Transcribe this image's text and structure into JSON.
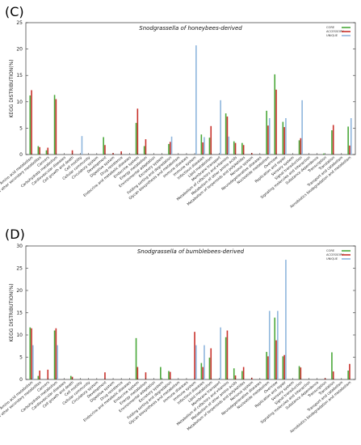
{
  "colors": {
    "core": "#4aa83a",
    "accessory": "#c8312b",
    "unique": "#8fb6dd"
  },
  "chart_data": [
    {
      "panel_label": "(C)",
      "type": "bar",
      "title": "Snodgrassella of honeybees-derived",
      "ylabel": "KEGG   DISTRIBUTION(%)",
      "ylim": [
        0,
        25
      ],
      "yticks": [
        0,
        5,
        10,
        15,
        20,
        25
      ],
      "legend": {
        "placement": "top-right",
        "entries": [
          "CORE",
          "ACCESSORY",
          "UNIQUE"
        ]
      },
      "categories": [
        "Amino acid metabolism",
        "Biosynthesis of other secondary metabolites",
        "Cancers",
        "Carbohydrate metabolism",
        "Cardiovascular diseases",
        "Cell growth and death",
        "Cell motility",
        "Cellular community",
        "Circulatory system",
        "Development",
        "Digestive system",
        "Drug resistance",
        "Endocrine and metabolic diseases",
        "Endocrine system",
        "Energy metabolism",
        "Environmental adaptation",
        "Excretory system",
        "Folding sorting and degradation",
        "Glycan biosynthesis and metabolism",
        "Immune diseases",
        "Immune system",
        "Infectious diseases",
        "Lipid metabolism",
        "Membrane transport",
        "Metabolism of cofactors and vitamins",
        "Metabolism of other amino acids",
        "Metabolism of terpenoids and polyketides",
        "Nervous system",
        "Neurodegenerative diseases",
        "Nucleotide metabolism",
        "Overview",
        "Replication and repair",
        "Sensory system",
        "Signal transduction",
        "Signaling molecules and interaction",
        "Substance dependence",
        "Transcription",
        "Translation",
        "Transport and catabolism",
        "Xenobiotics biodegradation and metabolism"
      ],
      "series": [
        {
          "name": "CORE",
          "values": [
            11.2,
            1.6,
            0.8,
            11.3,
            0.0,
            0.0,
            0.0,
            0.0,
            0.0,
            3.3,
            0.0,
            0.0,
            0.0,
            6.0,
            1.6,
            0.0,
            0.0,
            2.0,
            0.0,
            0.0,
            0.0,
            3.8,
            3.2,
            0.0,
            7.8,
            2.5,
            2.2,
            0.0,
            0.0,
            8.3,
            15.2,
            6.2,
            0.0,
            2.7,
            0.0,
            0.0,
            0.2,
            4.6,
            0.0,
            5.3
          ]
        },
        {
          "name": "ACCESSORY",
          "values": [
            12.2,
            1.4,
            1.3,
            10.5,
            0.0,
            0.8,
            0.0,
            0.0,
            0.0,
            1.8,
            0.3,
            0.6,
            0.0,
            8.7,
            2.9,
            0.0,
            0.0,
            2.4,
            0.0,
            0.0,
            0.0,
            2.3,
            5.4,
            0.0,
            7.2,
            2.2,
            1.8,
            0.3,
            0.0,
            5.5,
            12.3,
            5.2,
            0.0,
            3.1,
            0.0,
            0.0,
            0.0,
            5.6,
            0.0,
            1.7
          ]
        },
        {
          "name": "UNIQUE",
          "values": [
            0.0,
            0.0,
            0.0,
            0.0,
            0.0,
            0.0,
            3.5,
            0.0,
            0.0,
            0.0,
            0.0,
            0.0,
            0.0,
            0.0,
            0.0,
            0.0,
            0.0,
            3.4,
            0.0,
            0.0,
            20.7,
            3.3,
            0.0,
            10.3,
            3.4,
            0.0,
            0.0,
            0.0,
            0.0,
            6.9,
            0.0,
            6.9,
            0.0,
            10.3,
            0.0,
            0.0,
            0.0,
            0.0,
            0.0,
            6.9
          ]
        }
      ]
    },
    {
      "panel_label": "(D)",
      "type": "bar",
      "title": "Snodgrassella of bumblebees-derived",
      "ylabel": "KEGG   DISTRIBUTION(%)",
      "ylim": [
        0,
        30
      ],
      "yticks": [
        0,
        5,
        10,
        15,
        20,
        25,
        30
      ],
      "legend": {
        "placement": "top-right",
        "entries": [
          "CORE",
          "ACCESSORY",
          "UNIQUE"
        ]
      },
      "categories": [
        "Amino acid metabolism",
        "Biosynthesis of other secondary metabolites",
        "Cancers",
        "Carbohydrate metabolism",
        "Cardiovascular diseases",
        "Cell growth and death",
        "Cell motility",
        "Cellular community",
        "Circulatory system",
        "Development",
        "Digestive system",
        "Drug resistance",
        "Endocrine and metabolic diseases",
        "Endocrine system",
        "Energy metabolism",
        "Environmental adaptation",
        "Excretory system",
        "Folding sorting and degradation",
        "Glycan biosynthesis and metabolism",
        "Immune diseases",
        "Immune system",
        "Infectious diseases",
        "Lipid metabolism",
        "Membrane transport",
        "Metabolism of cofactors and vitamins",
        "Metabolism of other amino acids",
        "Metabolism of terpenoids and polyketides",
        "Nervous system",
        "Neurodegenerative diseases",
        "Nucleotide metabolism",
        "Overview",
        "Replication and repair",
        "Sensory system",
        "Signal transduction",
        "Signaling molecules and interaction",
        "Substance dependence",
        "Transcription",
        "Translation",
        "Transport and catabolism",
        "Xenobiotics biodegradation and metabolism"
      ],
      "series": [
        {
          "name": "CORE",
          "values": [
            11.7,
            0.8,
            0.0,
            11.0,
            0.0,
            0.8,
            0.0,
            0.0,
            0.0,
            0.0,
            0.0,
            0.0,
            0.0,
            9.3,
            0.0,
            0.0,
            2.8,
            1.9,
            0.0,
            0.0,
            0.0,
            3.7,
            4.9,
            0.0,
            9.5,
            2.5,
            1.9,
            0.0,
            0.0,
            6.2,
            13.9,
            5.2,
            0.0,
            3.0,
            0.0,
            0.0,
            0.0,
            6.1,
            0.0,
            2.0
          ]
        },
        {
          "name": "ACCESSORY",
          "values": [
            11.5,
            2.0,
            2.2,
            11.5,
            0.0,
            0.6,
            0.0,
            0.0,
            0.0,
            1.6,
            0.0,
            0.0,
            0.0,
            2.8,
            1.6,
            0.0,
            0.0,
            1.7,
            0.0,
            0.0,
            10.7,
            2.8,
            7.0,
            0.0,
            11.0,
            0.9,
            2.8,
            0.4,
            0.0,
            5.2,
            8.8,
            5.5,
            0.0,
            2.7,
            0.0,
            0.0,
            0.3,
            1.8,
            0.0,
            3.5
          ]
        },
        {
          "name": "UNIQUE",
          "values": [
            7.7,
            0.0,
            0.0,
            7.7,
            0.0,
            0.0,
            0.0,
            0.0,
            0.0,
            0.0,
            0.0,
            0.0,
            0.0,
            0.0,
            0.0,
            0.0,
            0.0,
            0.0,
            0.0,
            0.0,
            7.7,
            7.7,
            0.0,
            11.7,
            0.0,
            0.0,
            0.0,
            0.0,
            0.0,
            15.4,
            15.4,
            26.9,
            0.0,
            0.0,
            0.0,
            0.0,
            0.0,
            0.0,
            0.0,
            0.0
          ]
        }
      ]
    }
  ]
}
